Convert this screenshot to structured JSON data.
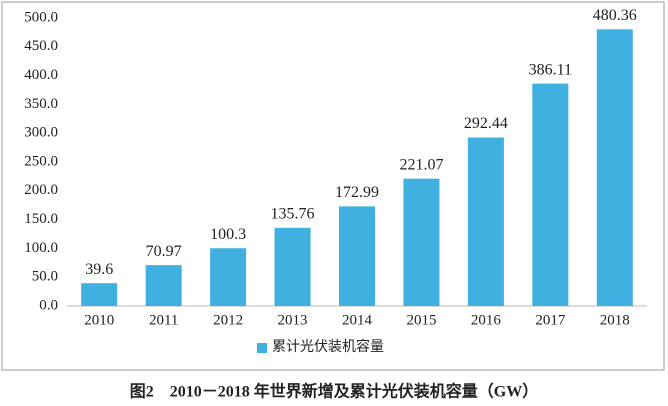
{
  "chart_data": {
    "type": "bar",
    "title": "图2　2010－2018 年世界新增及累计光伏装机容量（GW）",
    "categories": [
      "2010",
      "2011",
      "2012",
      "2013",
      "2014",
      "2015",
      "2016",
      "2017",
      "2018"
    ],
    "series": [
      {
        "name": "累计光伏装机容量",
        "color": "#3fb0e0",
        "values": [
          39.6,
          70.97,
          100.3,
          135.76,
          172.99,
          221.07,
          292.44,
          386.11,
          480.36
        ]
      }
    ],
    "ylim": [
      0,
      500
    ],
    "yticks": [
      {
        "value": 0,
        "label": "0.0"
      },
      {
        "value": 50,
        "label": "50.0"
      },
      {
        "value": 100,
        "label": "100.0"
      },
      {
        "value": 150,
        "label": "150.0"
      },
      {
        "value": 200,
        "label": "200.0"
      },
      {
        "value": 250,
        "label": "250.0"
      },
      {
        "value": 300,
        "label": "300.0"
      },
      {
        "value": 350,
        "label": "350.0"
      },
      {
        "value": 400,
        "label": "400.0"
      },
      {
        "value": 450,
        "label": "450.0"
      },
      {
        "value": 500,
        "label": "500.0"
      }
    ],
    "grid": false,
    "legend": "bottom"
  }
}
